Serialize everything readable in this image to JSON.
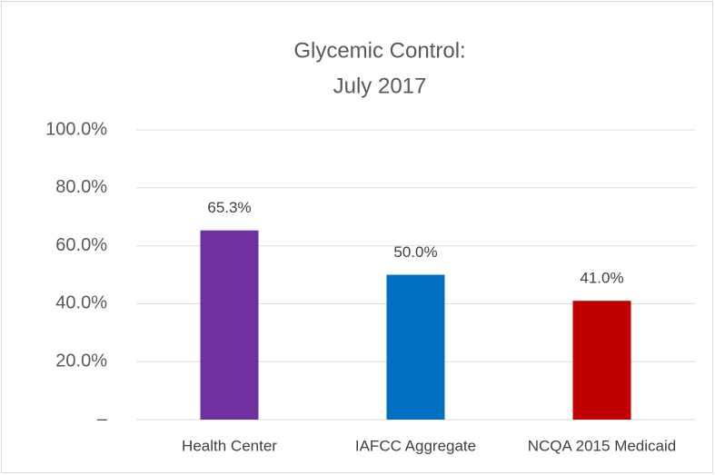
{
  "chart_data": {
    "type": "bar",
    "title": [
      "Glycemic Control:",
      "July 2017"
    ],
    "categories": [
      "Health Center",
      "IAFCC Aggregate",
      "NCQA 2015 Medicaid"
    ],
    "values": [
      65.3,
      50.0,
      41.0
    ],
    "value_labels": [
      "65.3%",
      "50.0%",
      "41.0%"
    ],
    "colors": [
      "#7030a0",
      "#0070c0",
      "#c00000"
    ],
    "ylim": [
      0,
      100
    ],
    "yticks": [
      {
        "value": 0,
        "label": "–"
      },
      {
        "value": 20,
        "label": "20.0%"
      },
      {
        "value": 40,
        "label": "40.0%"
      },
      {
        "value": 60,
        "label": "60.0%"
      },
      {
        "value": 80,
        "label": "80.0%"
      },
      {
        "value": 100,
        "label": "100.0%"
      }
    ],
    "grid": true
  }
}
